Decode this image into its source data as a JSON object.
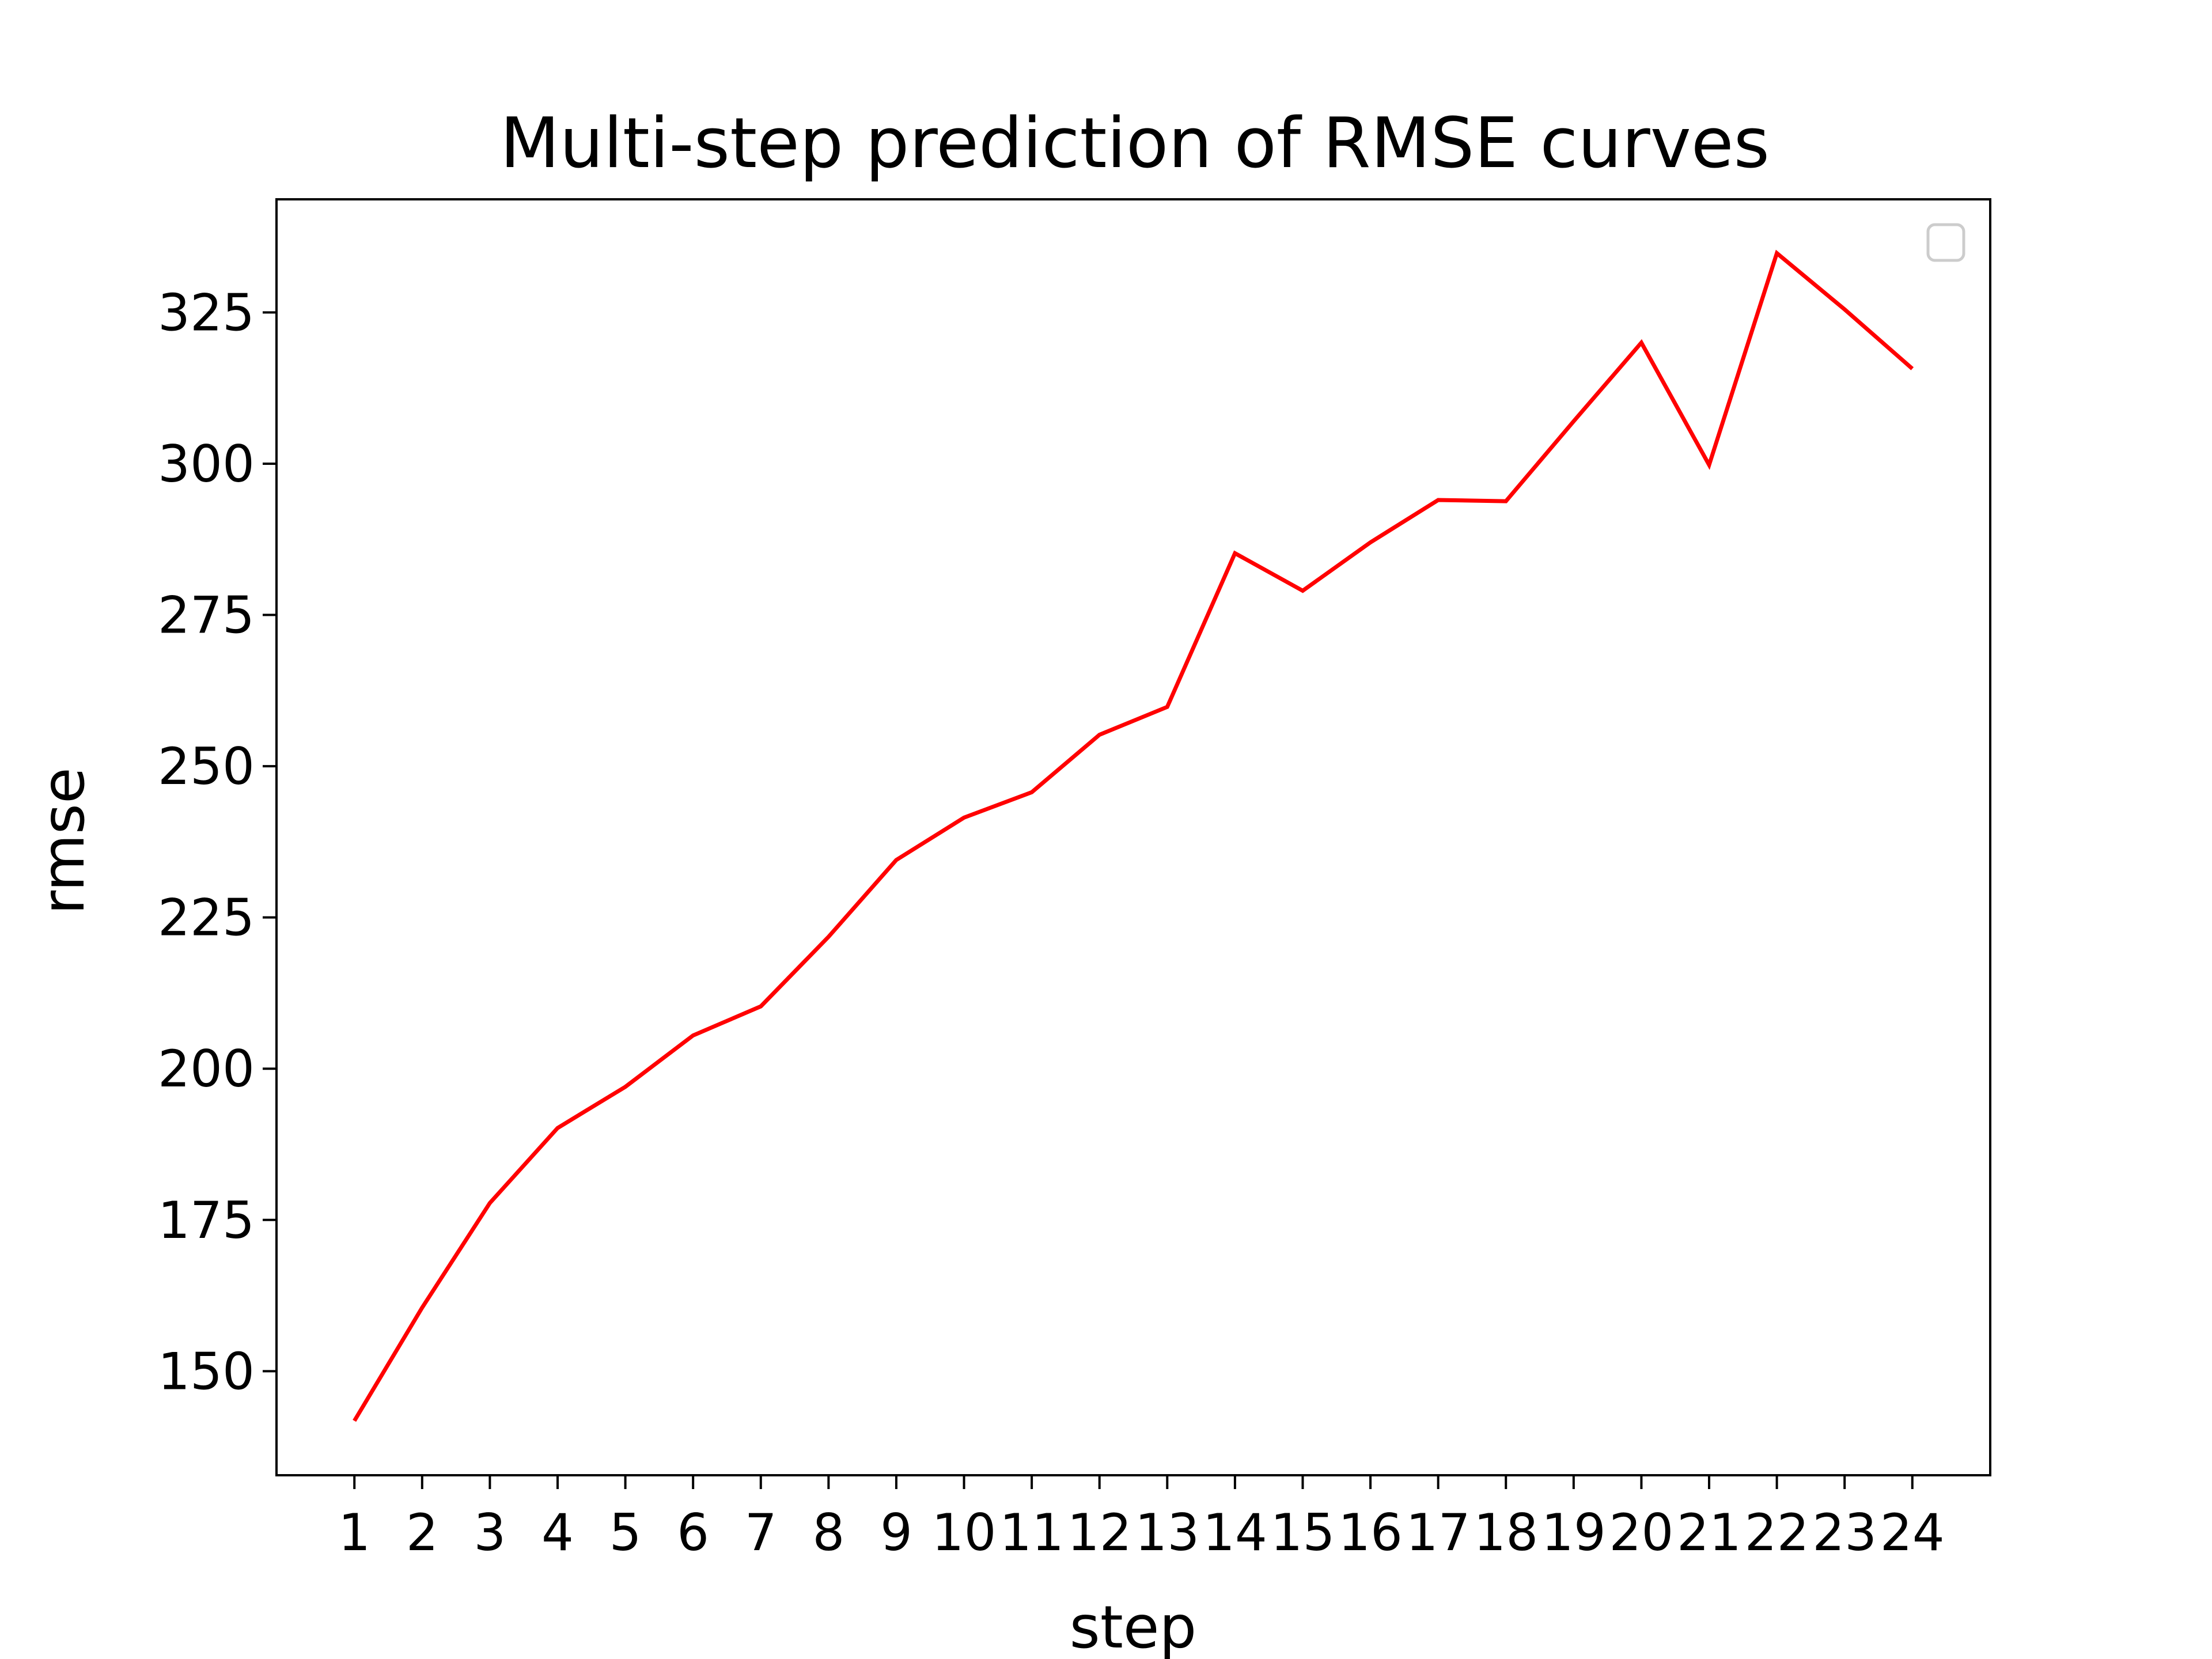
{
  "chart_data": {
    "type": "line",
    "title": "Multi-step prediction of RMSE curves",
    "xlabel": "step",
    "ylabel": "rmse",
    "categories": [
      "1",
      "2",
      "3",
      "4",
      "5",
      "6",
      "7",
      "8",
      "9",
      "10",
      "11",
      "12",
      "13",
      "14",
      "15",
      "16",
      "17",
      "18",
      "19",
      "20",
      "21",
      "22",
      "23",
      "24"
    ],
    "x": [
      1,
      2,
      3,
      4,
      5,
      6,
      7,
      8,
      9,
      10,
      11,
      12,
      13,
      14,
      15,
      16,
      17,
      18,
      19,
      20,
      21,
      22,
      23,
      24
    ],
    "series": [
      {
        "values": [
          141.8,
          160.5,
          177.8,
          190.2,
          197.0,
          205.5,
          210.3,
          221.8,
          234.5,
          241.5,
          245.7,
          255.2,
          259.8,
          285.2,
          279.0,
          287.0,
          294.0,
          293.8,
          307.0,
          320.0,
          299.8,
          334.8,
          325.5,
          315.7
        ],
        "color": "#ff0000"
      }
    ],
    "yticks": [
      150,
      175,
      200,
      225,
      250,
      275,
      300,
      325
    ],
    "ylim": [
      132.8,
      343.7
    ],
    "xlim": [
      -0.15,
      25.15
    ],
    "grid": false,
    "legend": {
      "position": "top-right",
      "entries": []
    }
  }
}
